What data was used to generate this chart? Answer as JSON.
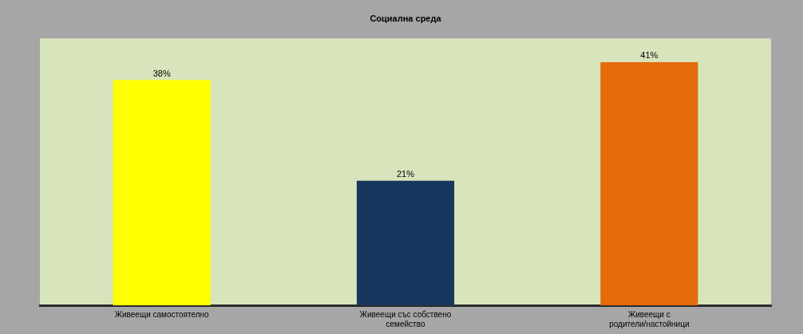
{
  "chart_data": {
    "type": "bar",
    "title": "Социална среда",
    "categories": [
      "Живеещи самостоятелно",
      "Живеещи със собствено семейство",
      "Живеещи с родители/настойници"
    ],
    "values": [
      38,
      21,
      41
    ],
    "colors": [
      "#ffff00",
      "#17375e",
      "#e46c0a"
    ],
    "value_labels": [
      "38%",
      "21%",
      "41%"
    ],
    "legend": false,
    "grid": false
  }
}
